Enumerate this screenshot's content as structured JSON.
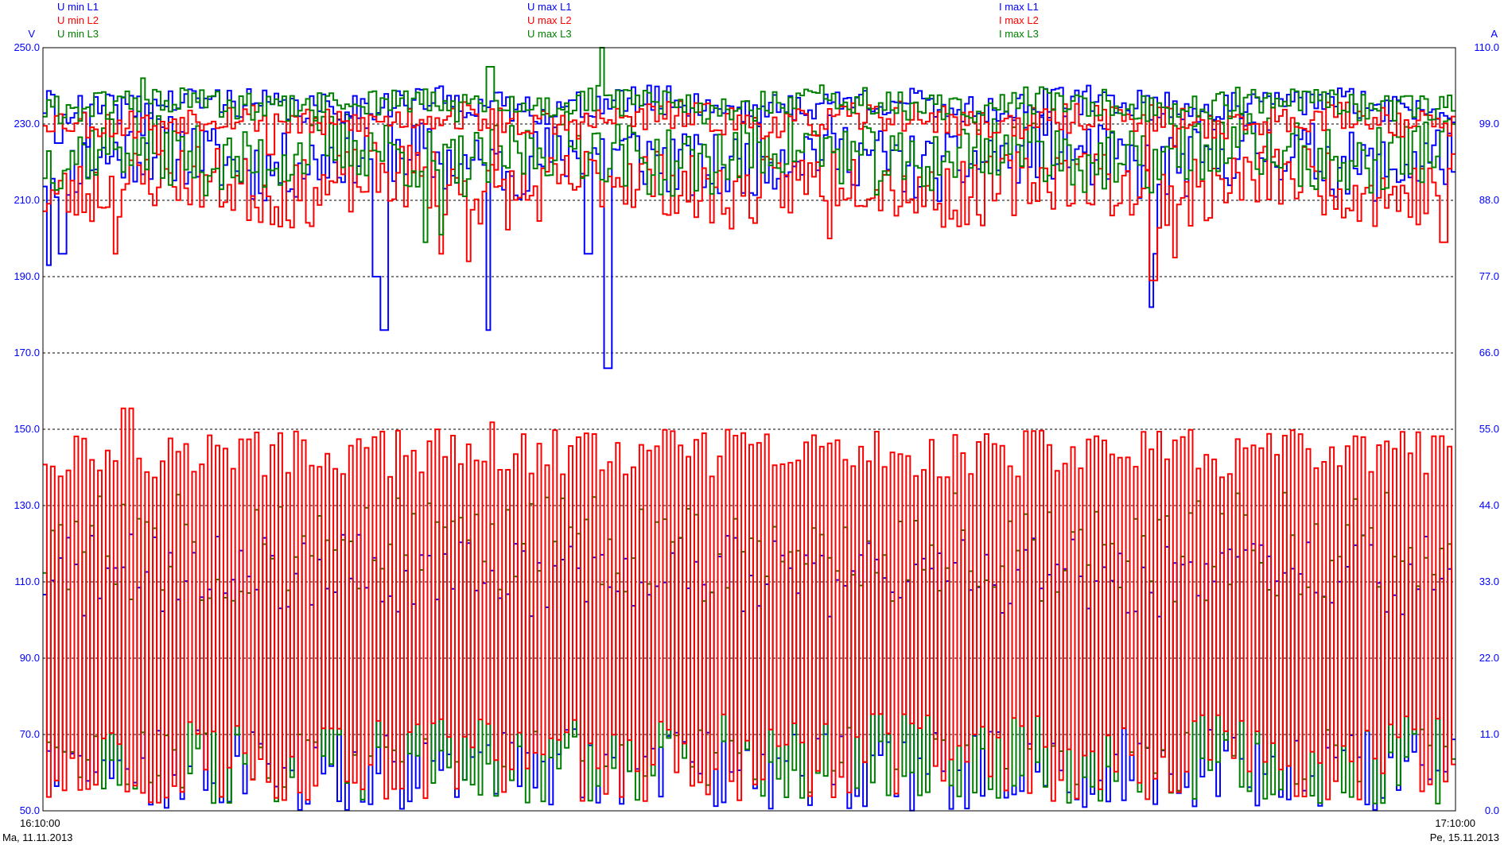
{
  "chart_data": {
    "type": "line",
    "left_axis": {
      "unit": "V",
      "ylim": [
        50,
        250
      ],
      "ticks": [
        "250.0",
        "230.0",
        "210.0",
        "190.0",
        "170.0",
        "150.0",
        "130.0",
        "110.0",
        "90.0",
        "70.0",
        "50.0"
      ]
    },
    "right_axis": {
      "unit": "A",
      "ylim": [
        0,
        110
      ],
      "ticks": [
        "110.0",
        "99.0",
        "88.0",
        "77.0",
        "66.0",
        "55.0",
        "44.0",
        "33.0",
        "22.0",
        "11.0",
        "0.0"
      ]
    },
    "x_start": {
      "time": "16:10:00",
      "date": "Ma, 11.11.2013"
    },
    "x_end": {
      "time": "17:10:00",
      "date": "Pe, 15.11.2013"
    },
    "grid": "horizontal dashed",
    "legend": [
      {
        "position": "top-left",
        "items": [
          {
            "label": "U min L1",
            "color": "#0000ff"
          },
          {
            "label": "U min L2",
            "color": "#ff0000"
          },
          {
            "label": "U min L3",
            "color": "#008000"
          }
        ]
      },
      {
        "position": "top-center",
        "items": [
          {
            "label": "U max L1",
            "color": "#0000ff"
          },
          {
            "label": "U max L2",
            "color": "#ff0000"
          },
          {
            "label": "U max L3",
            "color": "#008000"
          }
        ]
      },
      {
        "position": "top-right",
        "items": [
          {
            "label": "I max L1",
            "color": "#0000ff"
          },
          {
            "label": "I max L2",
            "color": "#ff0000"
          },
          {
            "label": "I max L3",
            "color": "#008000"
          }
        ]
      }
    ],
    "series": [
      {
        "name": "U min L1",
        "axis": "left",
        "color": "#0000ff",
        "base": 221,
        "amp": 9,
        "seed": 11,
        "dips": [
          [
            0.003,
            193
          ],
          [
            0.012,
            196
          ],
          [
            0.235,
            190
          ],
          [
            0.24,
            176
          ],
          [
            0.314,
            176
          ],
          [
            0.385,
            196
          ],
          [
            0.398,
            166
          ],
          [
            0.783,
            182
          ],
          [
            0.786,
            196
          ]
        ]
      },
      {
        "name": "U min L2",
        "axis": "left",
        "color": "#ff0000",
        "base": 214,
        "amp": 9,
        "seed": 23,
        "dips": [
          [
            0.05,
            196
          ],
          [
            0.28,
            196
          ],
          [
            0.3,
            194
          ],
          [
            0.555,
            200
          ],
          [
            0.785,
            189
          ],
          [
            0.8,
            195
          ],
          [
            0.99,
            199
          ]
        ]
      },
      {
        "name": "U min L3",
        "axis": "left",
        "color": "#008000",
        "base": 222,
        "amp": 9,
        "seed": 37,
        "dips": [
          [
            0.27,
            199
          ],
          [
            0.28,
            201
          ]
        ]
      },
      {
        "name": "U max L1",
        "axis": "left",
        "color": "#0000ff",
        "base": 235,
        "amp": 4,
        "seed": 41,
        "dips": [
          [
            0.01,
            225
          ],
          [
            0.03,
            224
          ],
          [
            0.07,
            227
          ]
        ]
      },
      {
        "name": "U max L2",
        "axis": "left",
        "color": "#ff0000",
        "base": 231,
        "amp": 4,
        "seed": 53,
        "dips": [
          [
            0.08,
            222
          ],
          [
            0.16,
            222
          ],
          [
            0.32,
            218
          ],
          [
            0.78,
            218
          ],
          [
            0.8,
            224
          ]
        ]
      },
      {
        "name": "U max L3",
        "axis": "left",
        "color": "#008000",
        "base": 235,
        "amp": 4,
        "seed": 61,
        "dips": [
          [
            0.07,
            242
          ],
          [
            0.315,
            245
          ],
          [
            0.395,
            250
          ]
        ]
      },
      {
        "name": "I max L1",
        "axis": "right",
        "color": "#0000ff",
        "lo": [
          0,
          12
        ],
        "hi": [
          28,
          40
        ],
        "period": 4,
        "seed": 71
      },
      {
        "name": "I max L3",
        "axis": "right",
        "color": "#008000",
        "lo": [
          1,
          12
        ],
        "hi": [
          30,
          46
        ],
        "period": 4,
        "seed": 83
      },
      {
        "name": "I max L2",
        "axis": "right",
        "color": "#ff0000",
        "lo": [
          1,
          14
        ],
        "hi": [
          48,
          55
        ],
        "period": 4,
        "seed": 97,
        "peaks": [
          [
            0.055,
            61
          ],
          [
            0.058,
            58
          ],
          [
            0.318,
            56
          ],
          [
            0.745,
            54
          ],
          [
            0.982,
            54
          ]
        ]
      }
    ]
  }
}
